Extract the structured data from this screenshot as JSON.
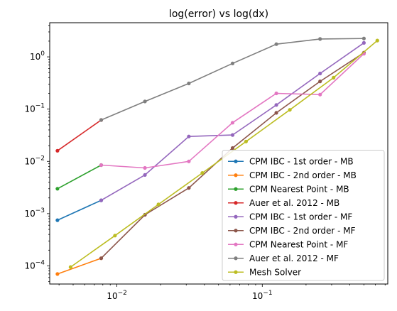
{
  "chart_data": {
    "type": "line",
    "title": "log(error) vs log(dx)",
    "xlabel": "",
    "ylabel": "",
    "xscale": "log",
    "yscale": "log",
    "xlim": [
      0.00345,
      0.73
    ],
    "ylim": [
      4.5e-05,
      4.5
    ],
    "grid": false,
    "legend_placement": "lower-right",
    "x_ticks": [
      {
        "value": 0.01,
        "base": "10",
        "exp": "−2"
      },
      {
        "value": 0.1,
        "base": "10",
        "exp": "−1"
      }
    ],
    "y_ticks": [
      {
        "value": 0.0001,
        "base": "10",
        "exp": "−4"
      },
      {
        "value": 0.001,
        "base": "10",
        "exp": "−3"
      },
      {
        "value": 0.01,
        "base": "10",
        "exp": "−2"
      },
      {
        "value": 0.1,
        "base": "10",
        "exp": "−1"
      },
      {
        "value": 1,
        "base": "10",
        "exp": "0"
      }
    ],
    "series": [
      {
        "name": "CPM IBC - 1st order - MB",
        "color": "#1f77b4",
        "x": [
          0.0039,
          0.0078
        ],
        "y": [
          0.00075,
          0.0018
        ]
      },
      {
        "name": "CPM IBC - 2nd order - MB",
        "color": "#ff7f0e",
        "x": [
          0.0039,
          0.0078
        ],
        "y": [
          7e-05,
          0.00014
        ]
      },
      {
        "name": "CPM Nearest Point - MB",
        "color": "#2ca02c",
        "x": [
          0.0039,
          0.0078
        ],
        "y": [
          0.003,
          0.0085
        ]
      },
      {
        "name": "Auer et al. 2012 - MB",
        "color": "#d62728",
        "x": [
          0.0039,
          0.0078
        ],
        "y": [
          0.016,
          0.062
        ]
      },
      {
        "name": "CPM IBC - 1st order - MF",
        "color": "#9467bd",
        "x": [
          0.0078,
          0.0156,
          0.03125,
          0.0625,
          0.125,
          0.25,
          0.5
        ],
        "y": [
          0.0018,
          0.0055,
          0.03,
          0.032,
          0.12,
          0.48,
          1.85
        ]
      },
      {
        "name": "CPM IBC - 2nd order - MF",
        "color": "#8c564b",
        "x": [
          0.0078,
          0.0156,
          0.03125,
          0.0625,
          0.125,
          0.25,
          0.5
        ],
        "y": [
          0.00014,
          0.00095,
          0.0031,
          0.018,
          0.085,
          0.34,
          1.2
        ]
      },
      {
        "name": "CPM Nearest Point - MF",
        "color": "#e377c2",
        "x": [
          0.0078,
          0.0156,
          0.03125,
          0.0625,
          0.125,
          0.25,
          0.5
        ],
        "y": [
          0.0085,
          0.0075,
          0.01,
          0.055,
          0.2,
          0.19,
          1.15
        ]
      },
      {
        "name": "Auer et al. 2012 - MF",
        "color": "#7f7f7f",
        "x": [
          0.0078,
          0.0156,
          0.03125,
          0.0625,
          0.125,
          0.25,
          0.5
        ],
        "y": [
          0.062,
          0.14,
          0.31,
          0.75,
          1.75,
          2.2,
          2.25
        ]
      },
      {
        "name": "Mesh Solver",
        "color": "#bcbd22",
        "x": [
          0.0048,
          0.0097,
          0.0193,
          0.0387,
          0.0773,
          0.1547,
          0.3094,
          0.6188
        ],
        "y": [
          9.5e-05,
          0.00038,
          0.0015,
          0.006,
          0.024,
          0.097,
          0.4,
          2.05
        ]
      }
    ]
  }
}
